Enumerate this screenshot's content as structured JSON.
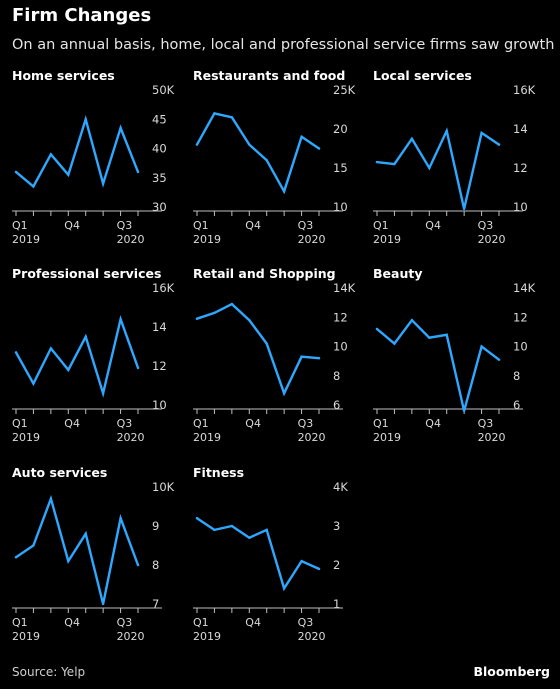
{
  "header": {
    "title": "Firm Changes",
    "subtitle": "On an annual basis, home, local and professional service firms saw growth"
  },
  "footer": {
    "source": "Source: Yelp",
    "brand": "Bloomberg"
  },
  "colors": {
    "background": "#000000",
    "line": "#2ea8ff",
    "axis": "#bfbfbf",
    "text": "#ffffff"
  },
  "chart_data": [
    {
      "type": "line",
      "title": "Home services",
      "x_tick_labels": [
        [
          "Q1",
          "2019"
        ],
        [
          "Q4",
          ""
        ],
        [
          "Q3",
          "2020"
        ]
      ],
      "x_tick_indices": [
        0,
        3,
        6
      ],
      "y_ticks": [
        "50K",
        "45",
        "40",
        "35",
        "30"
      ],
      "ylim": [
        30,
        50
      ],
      "series": [
        {
          "values": [
            36,
            33.5,
            39,
            35.5,
            45,
            34,
            43.5,
            36
          ]
        }
      ]
    },
    {
      "type": "line",
      "title": "Restaurants and food",
      "x_tick_labels": [
        [
          "Q1",
          "2019"
        ],
        [
          "Q4",
          ""
        ],
        [
          "Q3",
          "2020"
        ]
      ],
      "x_tick_indices": [
        0,
        3,
        6
      ],
      "y_ticks": [
        "25K",
        "20",
        "15",
        "10"
      ],
      "ylim": [
        10,
        25
      ],
      "series": [
        {
          "values": [
            18,
            22,
            21.5,
            18,
            16,
            12,
            19,
            17.5
          ]
        }
      ]
    },
    {
      "type": "line",
      "title": "Local services",
      "x_tick_labels": [
        [
          "Q1",
          "2019"
        ],
        [
          "Q4",
          ""
        ],
        [
          "Q3",
          "2020"
        ]
      ],
      "x_tick_indices": [
        0,
        3,
        6
      ],
      "y_ticks": [
        "16K",
        "14",
        "12",
        "10"
      ],
      "ylim": [
        10,
        16
      ],
      "series": [
        {
          "values": [
            12.3,
            12.2,
            13.5,
            12,
            13.9,
            9.9,
            13.8,
            13.2
          ]
        }
      ]
    },
    {
      "type": "line",
      "title": "Professional services",
      "x_tick_labels": [
        [
          "Q1",
          "2019"
        ],
        [
          "Q4",
          ""
        ],
        [
          "Q3",
          "2020"
        ]
      ],
      "x_tick_indices": [
        0,
        3,
        6
      ],
      "y_ticks": [
        "16K",
        "14",
        "12",
        "10"
      ],
      "ylim": [
        10,
        16
      ],
      "series": [
        {
          "values": [
            12.7,
            11.1,
            12.9,
            11.8,
            13.5,
            10.6,
            14.4,
            11.9
          ]
        }
      ]
    },
    {
      "type": "line",
      "title": "Retail and Shopping",
      "x_tick_labels": [
        [
          "Q1",
          "2019"
        ],
        [
          "Q4",
          ""
        ],
        [
          "Q3",
          "2020"
        ]
      ],
      "x_tick_indices": [
        0,
        3,
        6
      ],
      "y_ticks": [
        "14K",
        "12",
        "10",
        "8",
        "6"
      ],
      "ylim": [
        6,
        14
      ],
      "series": [
        {
          "values": [
            11.9,
            12.3,
            12.9,
            11.8,
            10.2,
            6.8,
            9.3,
            9.2
          ]
        }
      ]
    },
    {
      "type": "line",
      "title": "Beauty",
      "x_tick_labels": [
        [
          "Q1",
          "2019"
        ],
        [
          "Q4",
          ""
        ],
        [
          "Q3",
          "2020"
        ]
      ],
      "x_tick_indices": [
        0,
        3,
        6
      ],
      "y_ticks": [
        "14K",
        "12",
        "10",
        "8",
        "6"
      ],
      "ylim": [
        6,
        14
      ],
      "series": [
        {
          "values": [
            11.2,
            10.2,
            11.8,
            10.6,
            10.8,
            5.6,
            10.0,
            9.1
          ]
        }
      ]
    },
    {
      "type": "line",
      "title": "Auto services",
      "x_tick_labels": [
        [
          "Q1",
          "2019"
        ],
        [
          "Q4",
          ""
        ],
        [
          "Q3",
          "2020"
        ]
      ],
      "x_tick_indices": [
        0,
        3,
        6
      ],
      "y_ticks": [
        "10K",
        "9",
        "8",
        "7"
      ],
      "ylim": [
        7,
        10
      ],
      "series": [
        {
          "values": [
            8.2,
            8.5,
            9.7,
            8.1,
            8.8,
            7.0,
            9.2,
            8.0
          ]
        }
      ]
    },
    {
      "type": "line",
      "title": "Fitness",
      "x_tick_labels": [
        [
          "Q1",
          "2019"
        ],
        [
          "Q4",
          ""
        ],
        [
          "Q3",
          "2020"
        ]
      ],
      "x_tick_indices": [
        0,
        3,
        6
      ],
      "y_ticks": [
        "4K",
        "3",
        "2",
        "1"
      ],
      "ylim": [
        1,
        4
      ],
      "series": [
        {
          "values": [
            3.2,
            2.9,
            3.0,
            2.7,
            2.9,
            1.4,
            2.1,
            1.9
          ]
        }
      ]
    }
  ]
}
